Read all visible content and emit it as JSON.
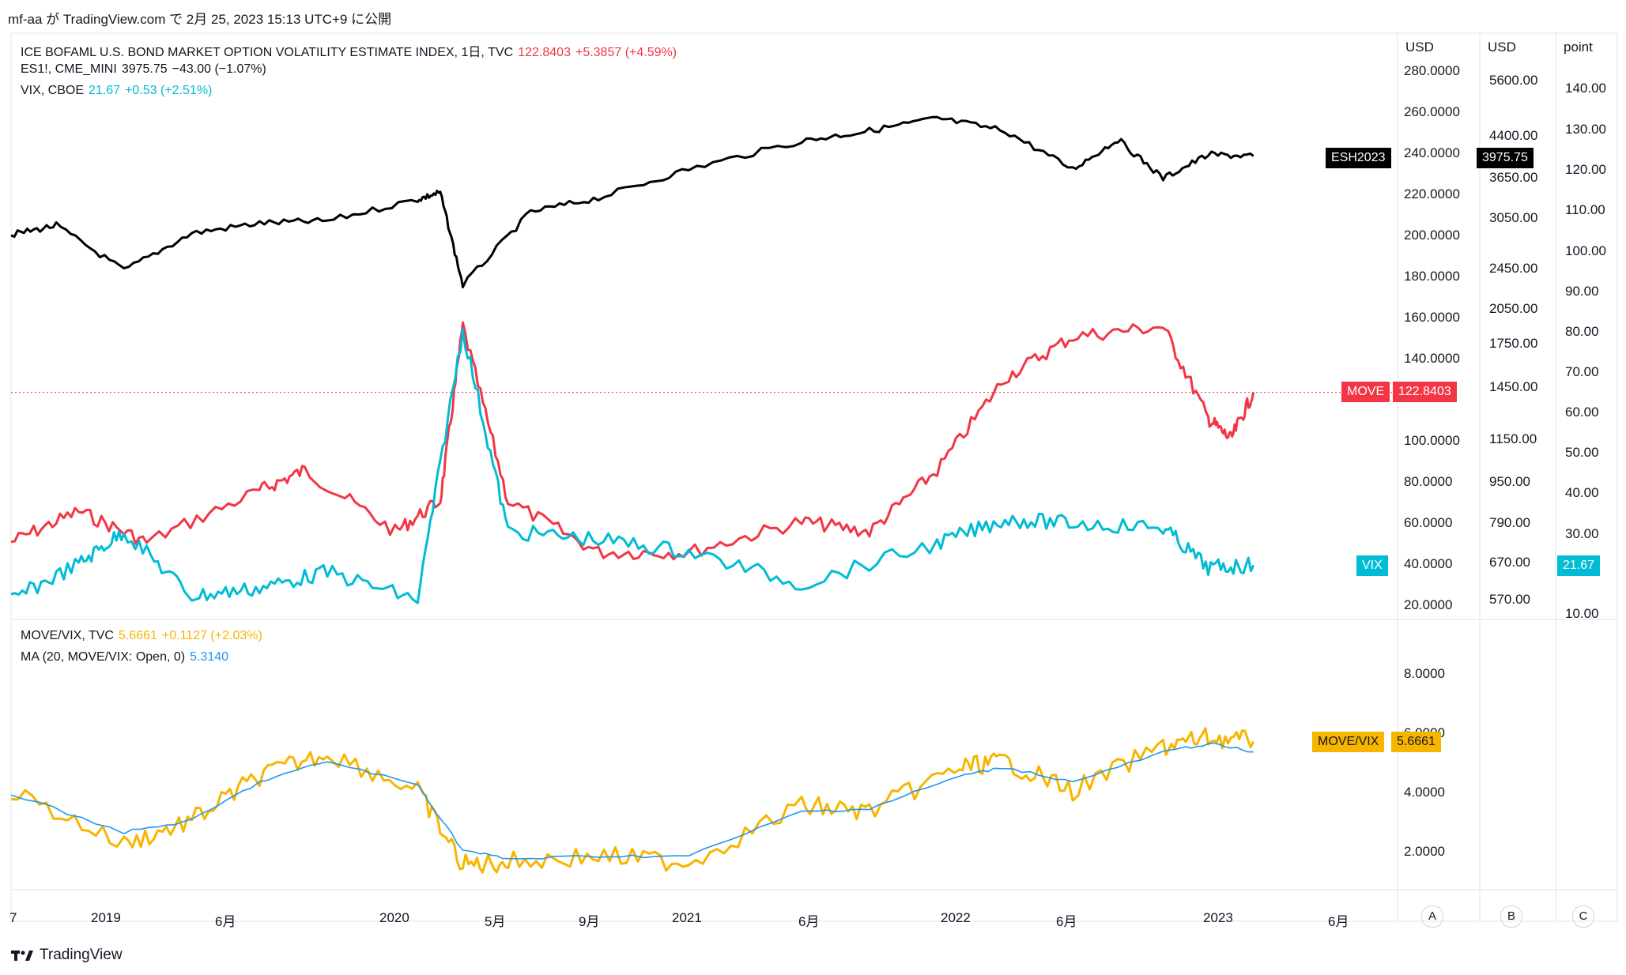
{
  "header": {
    "text": "mf-aa が TradingView.com で 2月 25, 2023 15:13 UTC+9 に公開"
  },
  "legend_top": [
    {
      "name": "ICE BOFAML U.S. BOND MARKET OPTION VOLATILITY ESTIMATE INDEX, 1日, TVC",
      "value": "122.8403",
      "change": "+5.3857 (+4.59%)",
      "color": "#f23645"
    },
    {
      "name": "ES1!, CME_MINI",
      "value": "3975.75",
      "change": "−43.00 (−1.07%)",
      "color": "#131722"
    },
    {
      "name": "VIX, CBOE",
      "value": "21.67",
      "change": "+0.53 (+2.51%)",
      "color": "#00bcd4"
    }
  ],
  "legend_bottom": [
    {
      "name": "MOVE/VIX, TVC",
      "value": "5.6661",
      "change": "+0.1127 (+2.03%)",
      "color": "#f7b500"
    },
    {
      "name": "MA (20, MOVE/VIX: Open, 0)",
      "value": "5.3140",
      "change": "",
      "color": "#2196f3"
    }
  ],
  "axis_units": {
    "a": "USD",
    "b": "USD",
    "c": "point"
  },
  "axis_a_ticks": [
    "280.0000",
    "260.0000",
    "240.0000",
    "220.0000",
    "200.0000",
    "180.0000",
    "160.0000",
    "140.0000",
    "100.0000",
    "80.0000",
    "60.0000",
    "40.0000",
    "20.0000"
  ],
  "axis_b_ticks": [
    "5600.00",
    "4400.00",
    "3650.00",
    "3050.00",
    "2450.00",
    "2050.00",
    "1750.00",
    "1450.00",
    "1150.00",
    "950.00",
    "790.00",
    "670.00",
    "570.00"
  ],
  "axis_c_ticks": [
    "140.00",
    "130.00",
    "120.00",
    "110.00",
    "100.00",
    "90.00",
    "80.00",
    "70.00",
    "60.00",
    "50.00",
    "40.00",
    "30.00",
    "10.00"
  ],
  "bottom_axis_ticks": [
    "8.0000",
    "6.0000",
    "4.0000",
    "2.0000"
  ],
  "x_ticks": [
    "7",
    "2019",
    "6月",
    "2020",
    "5月",
    "9月",
    "2021",
    "6月",
    "2022",
    "6月",
    "2023",
    "6月"
  ],
  "price_tags": {
    "es": {
      "label": "ESH2023",
      "value": "3975.75"
    },
    "move": {
      "label": "MOVE",
      "value": "122.8403"
    },
    "vix": {
      "label": "VIX",
      "value": "21.67"
    },
    "ratio": {
      "label": "MOVE/VIX",
      "value": "5.6661"
    }
  },
  "scale_buttons": [
    "A",
    "B",
    "C"
  ],
  "brand": "TradingView",
  "colors": {
    "move": "#f23645",
    "es": "#000000",
    "vix": "#00bcd4",
    "ratio": "#f7b500",
    "ma": "#2196f3"
  },
  "chart_data": [
    {
      "type": "line",
      "panel": "main",
      "log_scale": true,
      "x_range": [
        "2018-07",
        "2023-06"
      ],
      "series": [
        {
          "name": "ES1!",
          "axis": "B",
          "x": [
            "2018-07",
            "2018-09",
            "2018-12",
            "2019-03",
            "2019-06",
            "2019-09",
            "2020-01",
            "2020-02",
            "2020-03",
            "2020-06",
            "2020-09",
            "2021-01",
            "2021-06",
            "2021-09",
            "2021-12",
            "2022-03",
            "2022-06",
            "2022-08",
            "2022-10",
            "2022-12",
            "2023-02"
          ],
          "values": [
            2800,
            2920,
            2390,
            2820,
            2950,
            2980,
            3280,
            3380,
            2240,
            3100,
            3300,
            3750,
            4250,
            4450,
            4700,
            4450,
            3750,
            4280,
            3600,
            4000,
            3975.75
          ]
        },
        {
          "name": "MOVE",
          "axis": "A",
          "x": [
            "2018-07",
            "2018-10",
            "2019-01",
            "2019-06",
            "2019-08",
            "2019-12",
            "2020-02",
            "2020-03",
            "2020-05",
            "2020-09",
            "2021-01",
            "2021-06",
            "2021-09",
            "2021-12",
            "2022-03",
            "2022-06",
            "2022-10",
            "2022-12",
            "2023-01",
            "2023-02"
          ],
          "values": [
            50,
            65,
            50,
            75,
            85,
            55,
            70,
            155,
            70,
            45,
            45,
            60,
            55,
            85,
            130,
            150,
            155,
            110,
            100,
            122.84
          ]
        },
        {
          "name": "VIX",
          "axis": "C",
          "x": [
            "2018-07",
            "2018-10",
            "2018-12",
            "2019-03",
            "2019-06",
            "2019-09",
            "2020-01",
            "2020-03",
            "2020-05",
            "2020-09",
            "2021-01",
            "2021-06",
            "2021-12",
            "2022-03",
            "2022-06",
            "2022-10",
            "2022-12",
            "2023-02"
          ],
          "values": [
            13,
            22,
            30,
            14,
            16,
            20,
            13,
            80,
            30,
            28,
            25,
            17,
            27,
            33,
            32,
            31,
            21,
            21.67
          ]
        }
      ]
    },
    {
      "type": "line",
      "panel": "ratio",
      "ylim": [
        1,
        9
      ],
      "series": [
        {
          "name": "MOVE/VIX",
          "x": [
            "2018-07",
            "2018-12",
            "2019-03",
            "2019-06",
            "2019-09",
            "2020-01",
            "2020-03",
            "2020-05",
            "2020-09",
            "2021-01",
            "2021-06",
            "2021-09",
            "2022-01",
            "2022-03",
            "2022-06",
            "2022-10",
            "2022-12",
            "2023-02"
          ],
          "values": [
            4.0,
            2.2,
            3.0,
            4.5,
            5.3,
            4.0,
            1.5,
            1.6,
            1.8,
            1.6,
            3.5,
            3.3,
            4.8,
            5.0,
            4.0,
            5.5,
            5.8,
            5.6661
          ]
        },
        {
          "name": "MA (20, MOVE/VIX: Open, 0)",
          "x": [
            "2018-07",
            "2018-12",
            "2019-03",
            "2019-06",
            "2019-09",
            "2020-01",
            "2020-03",
            "2020-05",
            "2020-09",
            "2021-01",
            "2021-06",
            "2021-09",
            "2022-01",
            "2022-03",
            "2022-06",
            "2022-10",
            "2022-12",
            "2023-02"
          ],
          "values": [
            3.9,
            2.6,
            3.0,
            4.3,
            5.0,
            4.2,
            2.0,
            1.7,
            1.8,
            1.8,
            3.3,
            3.4,
            4.5,
            4.8,
            4.3,
            5.3,
            5.6,
            5.314
          ]
        }
      ]
    }
  ]
}
